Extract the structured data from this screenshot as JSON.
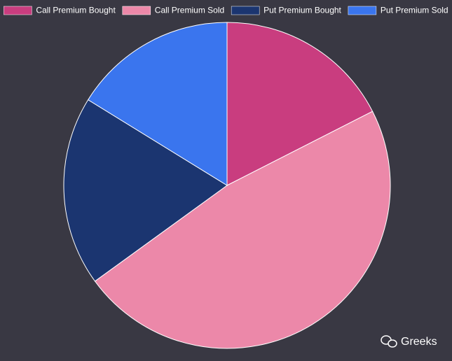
{
  "chart_data": {
    "type": "pie",
    "categories": [
      "Call Premium Bought",
      "Call Premium Sold",
      "Put Premium Bought",
      "Put Premium Sold"
    ],
    "values": [
      17.5,
      47.5,
      18.8,
      16.2
    ],
    "colors": [
      "#c93d7f",
      "#ec88a9",
      "#1b3570",
      "#3a75ee"
    ],
    "legend": "top"
  },
  "watermark": "Greeks"
}
